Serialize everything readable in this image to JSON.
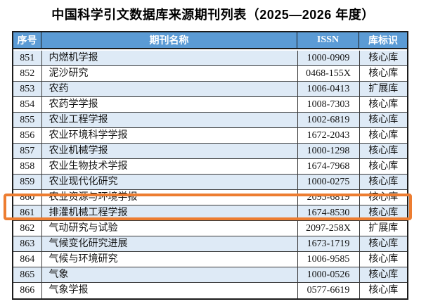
{
  "title": "中国科学引文数据库来源期刊列表（2025—2026 年度）",
  "table": {
    "columns": [
      "序号",
      "期刊名称",
      "ISSN",
      "库标识"
    ],
    "rows": [
      {
        "no": "851",
        "name": "内燃机学报",
        "issn": "1000-0909",
        "db": "核心库"
      },
      {
        "no": "852",
        "name": "泥沙研究",
        "issn": "0468-155X",
        "db": "核心库"
      },
      {
        "no": "853",
        "name": "农药",
        "issn": "1006-0413",
        "db": "扩展库"
      },
      {
        "no": "854",
        "name": "农药学学报",
        "issn": "1008-7303",
        "db": "核心库"
      },
      {
        "no": "855",
        "name": "农业工程学报",
        "issn": "1002-6819",
        "db": "核心库"
      },
      {
        "no": "856",
        "name": "农业环境科学学报",
        "issn": "1672-2043",
        "db": "核心库"
      },
      {
        "no": "857",
        "name": "农业机械学报",
        "issn": "1000-1298",
        "db": "核心库"
      },
      {
        "no": "858",
        "name": "农业生物技术学报",
        "issn": "1674-7968",
        "db": "核心库"
      },
      {
        "no": "859",
        "name": "农业现代化研究",
        "issn": "1000-0275",
        "db": "核心库"
      },
      {
        "no": "860",
        "name": "农业资源与环境学报",
        "issn": "2095-6819",
        "db": "核心库"
      },
      {
        "no": "861",
        "name": "排灌机械工程学报",
        "issn": "1674-8530",
        "db": "核心库"
      },
      {
        "no": "862",
        "name": "气动研究与试验",
        "issn": "2097-258X",
        "db": "扩展库"
      },
      {
        "no": "863",
        "name": "气候变化研究进展",
        "issn": "1673-1719",
        "db": "核心库"
      },
      {
        "no": "864",
        "name": "气候与环境研究",
        "issn": "1006-9585",
        "db": "核心库"
      },
      {
        "no": "865",
        "name": "气象",
        "issn": "1000-0526",
        "db": "核心库"
      },
      {
        "no": "866",
        "name": "气象学报",
        "issn": "0577-6619",
        "db": "核心库"
      }
    ],
    "highlighted_row": "861"
  },
  "colors": {
    "header_bg": "#5B9BD5",
    "header_text": "#FFFFFF",
    "row_stripe": "#DEEAF6",
    "highlight_border": "#ED7D31",
    "grid_line": "#3A3A3A"
  }
}
